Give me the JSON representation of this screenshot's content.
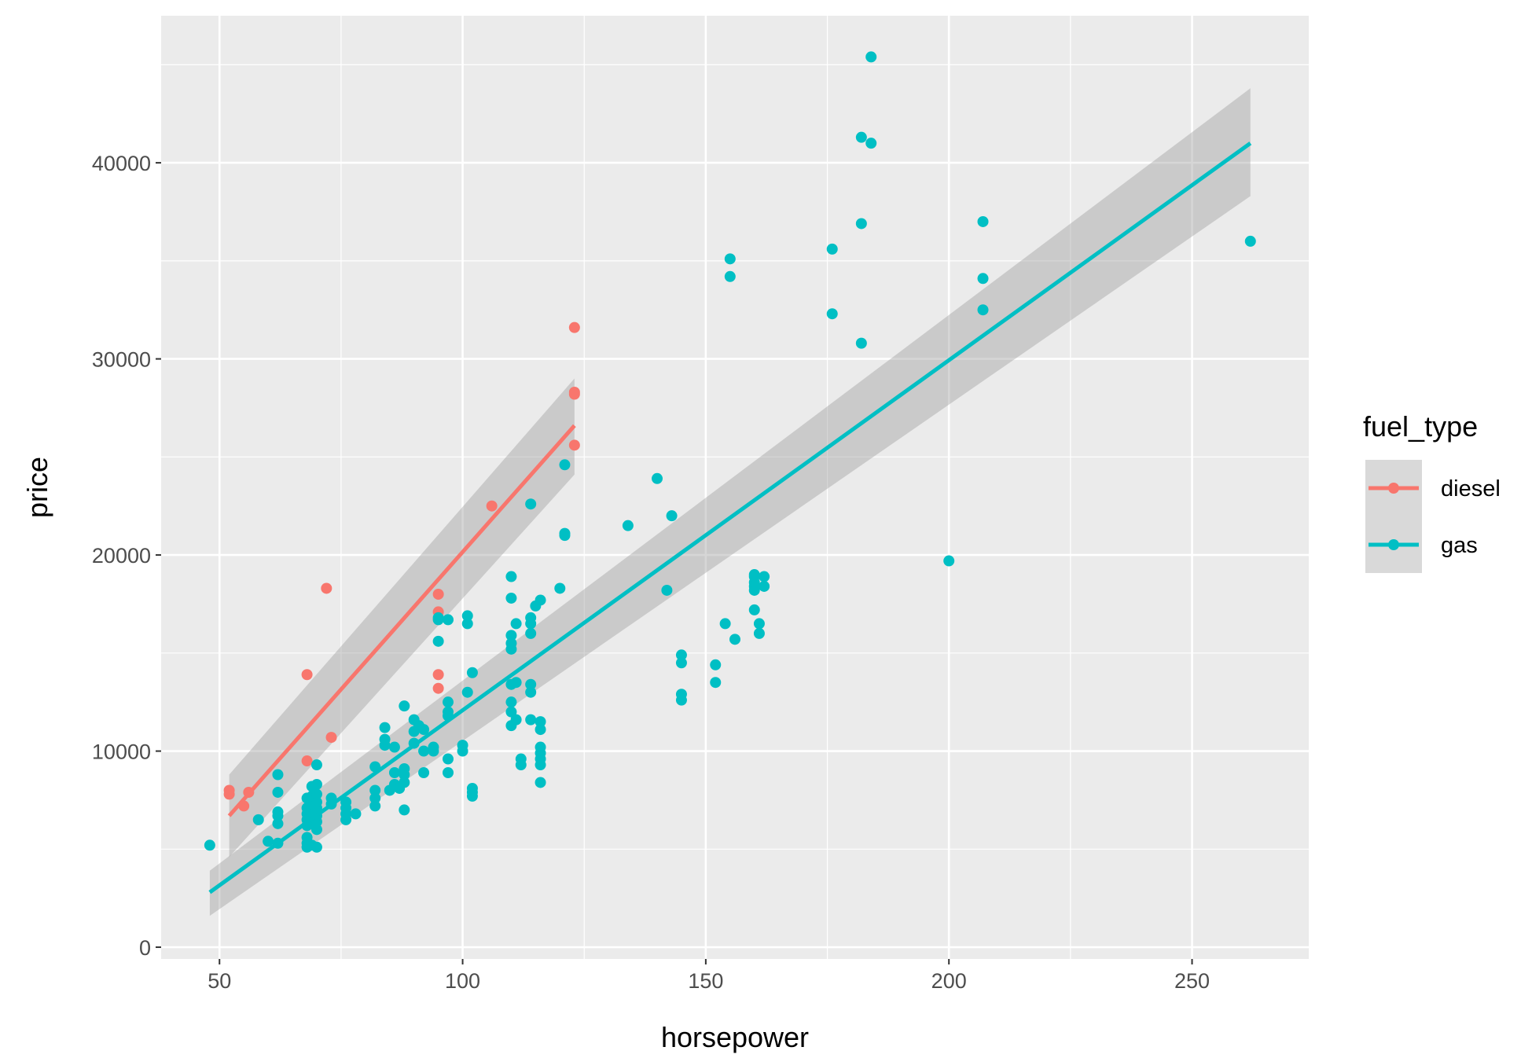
{
  "chart_data": {
    "type": "scatter",
    "title": "",
    "xlabel": "horsepower",
    "ylabel": "price",
    "xlim": [
      38,
      274
    ],
    "ylim": [
      -600,
      47500
    ],
    "x_ticks": [
      50,
      100,
      150,
      200,
      250
    ],
    "x_tick_labels": [
      "50",
      "100",
      "150",
      "200",
      "250"
    ],
    "y_ticks": [
      0,
      10000,
      20000,
      30000,
      40000
    ],
    "y_tick_labels": [
      "0",
      "10000",
      "20000",
      "30000",
      "40000"
    ],
    "grid": true,
    "legend": {
      "title": "fuel_type",
      "position": "right",
      "entries": [
        "diesel",
        "gas"
      ]
    },
    "series": [
      {
        "name": "diesel",
        "color": "#F8766D",
        "points": [
          [
            52,
            7800
          ],
          [
            52,
            8000
          ],
          [
            55,
            7200
          ],
          [
            56,
            7900
          ],
          [
            68,
            13900
          ],
          [
            68,
            9500
          ],
          [
            72,
            18300
          ],
          [
            73,
            10700
          ],
          [
            95,
            18000
          ],
          [
            95,
            17100
          ],
          [
            95,
            13900
          ],
          [
            95,
            13200
          ],
          [
            106,
            22500
          ],
          [
            123,
            31600
          ],
          [
            123,
            28200
          ],
          [
            123,
            28300
          ],
          [
            123,
            25600
          ]
        ],
        "fit": {
          "x": [
            52,
            123
          ],
          "y": [
            6700,
            26600
          ]
        },
        "band": {
          "upper": [
            8800,
            29000
          ],
          "lower": [
            4600,
            24100
          ]
        }
      },
      {
        "name": "gas",
        "color": "#00BFC4",
        "points": [
          [
            48,
            5200
          ],
          [
            58,
            6500
          ],
          [
            60,
            5400
          ],
          [
            62,
            5300
          ],
          [
            62,
            6300
          ],
          [
            62,
            6700
          ],
          [
            62,
            6900
          ],
          [
            62,
            7900
          ],
          [
            62,
            8800
          ],
          [
            68,
            5100
          ],
          [
            68,
            5300
          ],
          [
            68,
            5600
          ],
          [
            68,
            6200
          ],
          [
            68,
            6500
          ],
          [
            68,
            6800
          ],
          [
            68,
            7100
          ],
          [
            68,
            7600
          ],
          [
            69,
            5200
          ],
          [
            69,
            6300
          ],
          [
            69,
            6900
          ],
          [
            69,
            7300
          ],
          [
            69,
            7700
          ],
          [
            69,
            8200
          ],
          [
            70,
            5100
          ],
          [
            70,
            6000
          ],
          [
            70,
            6400
          ],
          [
            70,
            6700
          ],
          [
            70,
            7100
          ],
          [
            70,
            7400
          ],
          [
            70,
            7800
          ],
          [
            70,
            8300
          ],
          [
            70,
            9300
          ],
          [
            73,
            7300
          ],
          [
            73,
            7600
          ],
          [
            76,
            6500
          ],
          [
            76,
            6800
          ],
          [
            76,
            7100
          ],
          [
            76,
            7400
          ],
          [
            78,
            6800
          ],
          [
            82,
            7200
          ],
          [
            82,
            7600
          ],
          [
            82,
            8000
          ],
          [
            82,
            9200
          ],
          [
            84,
            10300
          ],
          [
            84,
            10600
          ],
          [
            84,
            11200
          ],
          [
            85,
            8000
          ],
          [
            86,
            8300
          ],
          [
            86,
            8900
          ],
          [
            86,
            10200
          ],
          [
            87,
            8100
          ],
          [
            88,
            7000
          ],
          [
            88,
            8400
          ],
          [
            88,
            8800
          ],
          [
            88,
            9100
          ],
          [
            88,
            12300
          ],
          [
            90,
            10400
          ],
          [
            90,
            11000
          ],
          [
            90,
            11600
          ],
          [
            91,
            11300
          ],
          [
            92,
            8900
          ],
          [
            92,
            10000
          ],
          [
            92,
            11100
          ],
          [
            94,
            10000
          ],
          [
            94,
            10200
          ],
          [
            95,
            15600
          ],
          [
            95,
            16700
          ],
          [
            95,
            16800
          ],
          [
            97,
            8900
          ],
          [
            97,
            9600
          ],
          [
            97,
            11800
          ],
          [
            97,
            12000
          ],
          [
            97,
            12500
          ],
          [
            97,
            16700
          ],
          [
            100,
            10000
          ],
          [
            100,
            10300
          ],
          [
            101,
            13000
          ],
          [
            101,
            16500
          ],
          [
            101,
            16900
          ],
          [
            102,
            7700
          ],
          [
            102,
            7900
          ],
          [
            102,
            8100
          ],
          [
            102,
            14000
          ],
          [
            110,
            11300
          ],
          [
            110,
            12000
          ],
          [
            110,
            12500
          ],
          [
            110,
            13400
          ],
          [
            110,
            15200
          ],
          [
            110,
            15500
          ],
          [
            110,
            15900
          ],
          [
            110,
            17800
          ],
          [
            110,
            18900
          ],
          [
            111,
            11600
          ],
          [
            111,
            13500
          ],
          [
            111,
            16500
          ],
          [
            112,
            9300
          ],
          [
            112,
            9600
          ],
          [
            114,
            11600
          ],
          [
            114,
            13000
          ],
          [
            114,
            13400
          ],
          [
            114,
            16000
          ],
          [
            114,
            16500
          ],
          [
            114,
            16800
          ],
          [
            114,
            22600
          ],
          [
            115,
            17400
          ],
          [
            116,
            8400
          ],
          [
            116,
            9300
          ],
          [
            116,
            9600
          ],
          [
            116,
            9900
          ],
          [
            116,
            10200
          ],
          [
            116,
            11100
          ],
          [
            116,
            11500
          ],
          [
            116,
            17700
          ],
          [
            120,
            18300
          ],
          [
            121,
            21000
          ],
          [
            121,
            21100
          ],
          [
            121,
            24600
          ],
          [
            134,
            21500
          ],
          [
            140,
            23900
          ],
          [
            142,
            18200
          ],
          [
            143,
            22000
          ],
          [
            145,
            12600
          ],
          [
            145,
            12900
          ],
          [
            145,
            14500
          ],
          [
            145,
            14900
          ],
          [
            152,
            13500
          ],
          [
            152,
            14400
          ],
          [
            154,
            16500
          ],
          [
            155,
            34200
          ],
          [
            155,
            35100
          ],
          [
            156,
            15700
          ],
          [
            160,
            17200
          ],
          [
            160,
            18200
          ],
          [
            160,
            18400
          ],
          [
            160,
            18600
          ],
          [
            160,
            18900
          ],
          [
            160,
            19000
          ],
          [
            161,
            16000
          ],
          [
            161,
            16500
          ],
          [
            162,
            18400
          ],
          [
            162,
            18900
          ],
          [
            176,
            32300
          ],
          [
            176,
            35600
          ],
          [
            182,
            30800
          ],
          [
            182,
            36900
          ],
          [
            182,
            41300
          ],
          [
            184,
            41000
          ],
          [
            184,
            45400
          ],
          [
            200,
            19700
          ],
          [
            207,
            32500
          ],
          [
            207,
            34100
          ],
          [
            207,
            37000
          ],
          [
            262,
            36000
          ]
        ],
        "fit": {
          "x": [
            48,
            262
          ],
          "y": [
            2800,
            41000
          ]
        },
        "band": {
          "upper": [
            3900,
            43800
          ],
          "lower": [
            1600,
            38300
          ]
        }
      }
    ]
  }
}
